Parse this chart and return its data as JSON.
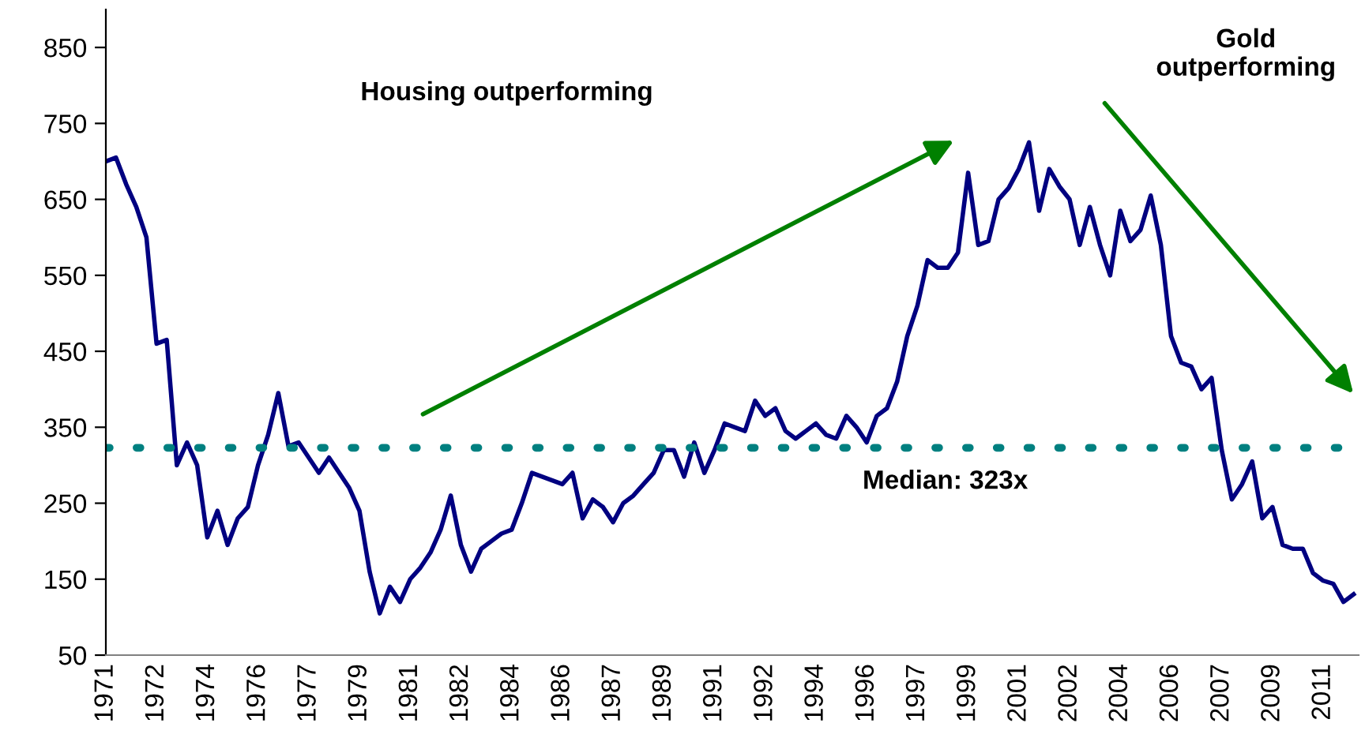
{
  "chart_data": {
    "type": "line",
    "categories": [
      "1971",
      null,
      null,
      null,
      null,
      "1972",
      null,
      null,
      null,
      null,
      "1974",
      null,
      null,
      null,
      null,
      "1976",
      null,
      null,
      null,
      null,
      "1977",
      null,
      null,
      null,
      null,
      "1979",
      null,
      null,
      null,
      null,
      "1981",
      null,
      null,
      null,
      null,
      "1982",
      null,
      null,
      null,
      null,
      "1984",
      null,
      null,
      null,
      null,
      "1986",
      null,
      null,
      null,
      null,
      "1987",
      null,
      null,
      null,
      null,
      "1989",
      null,
      null,
      null,
      null,
      "1991",
      null,
      null,
      null,
      null,
      "1992",
      null,
      null,
      null,
      null,
      "1994",
      null,
      null,
      null,
      null,
      "1996",
      null,
      null,
      null,
      null,
      "1997",
      null,
      null,
      null,
      null,
      "1999",
      null,
      null,
      null,
      null,
      "2001",
      null,
      null,
      null,
      null,
      "2002",
      null,
      null,
      null,
      null,
      "2004",
      null,
      null,
      null,
      null,
      "2006",
      null,
      null,
      null,
      null,
      "2007",
      null,
      null,
      null,
      null,
      "2009",
      null,
      null,
      null,
      null,
      "2011",
      null,
      null,
      null
    ],
    "series": [
      {
        "color": "#000080",
        "values": [
          700,
          705,
          670,
          640,
          600,
          460,
          465,
          300,
          330,
          300,
          205,
          240,
          195,
          230,
          245,
          300,
          340,
          395,
          325,
          330,
          310,
          290,
          310,
          290,
          270,
          240,
          160,
          105,
          140,
          120,
          150,
          165,
          185,
          215,
          260,
          195,
          160,
          190,
          200,
          210,
          215,
          250,
          290,
          285,
          280,
          275,
          290,
          230,
          255,
          245,
          225,
          250,
          260,
          275,
          290,
          320,
          320,
          285,
          330,
          290,
          320,
          355,
          350,
          345,
          385,
          365,
          375,
          345,
          335,
          345,
          355,
          340,
          335,
          365,
          350,
          330,
          365,
          375,
          410,
          470,
          510,
          570,
          560,
          560,
          580,
          685,
          590,
          595,
          650,
          665,
          690,
          725,
          635,
          690,
          667,
          650,
          590,
          640,
          590,
          550,
          635,
          595,
          610,
          655,
          590,
          470,
          435,
          430,
          400,
          415,
          320,
          255,
          275,
          305,
          230,
          245,
          195,
          190,
          190,
          158,
          148,
          144,
          120,
          130
        ]
      }
    ],
    "ylim": [
      50,
      900
    ],
    "yticks": [
      50,
      150,
      250,
      350,
      450,
      550,
      650,
      750,
      850
    ],
    "ref_lines": [
      {
        "axis": "y",
        "value": 323,
        "label": "Median: 323x",
        "color": "#008080",
        "line_style": "dotted"
      }
    ],
    "annotations": [
      "Housing outperforming",
      "Gold\noutperforming"
    ],
    "grid": false,
    "legend": false,
    "marker": "none",
    "line_style": "solid"
  }
}
